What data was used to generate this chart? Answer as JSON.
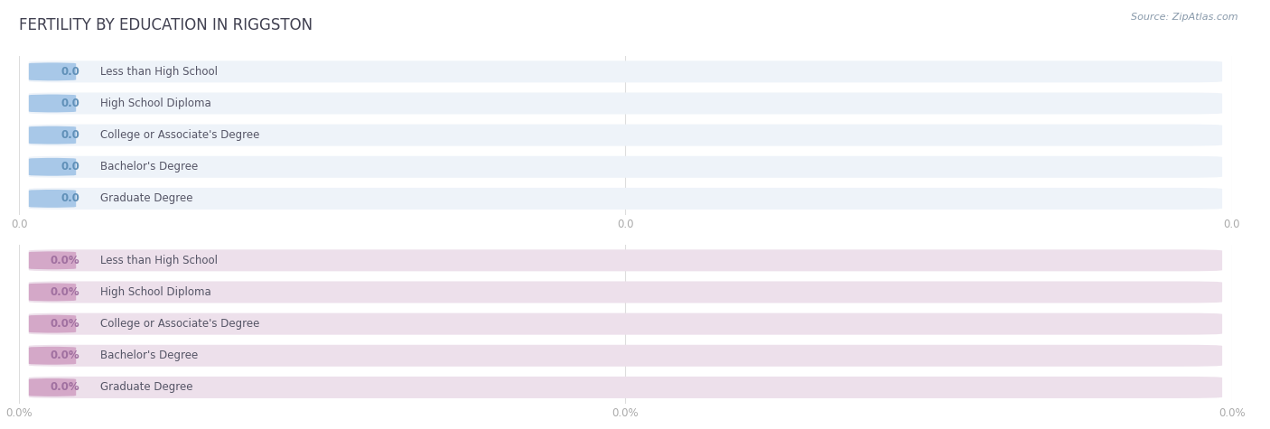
{
  "title": "FERTILITY BY EDUCATION IN RIGGSTON",
  "source": "Source: ZipAtlas.com",
  "background_color": "#ffffff",
  "plot_bg_color": "#ffffff",
  "categories": [
    "Less than High School",
    "High School Diploma",
    "College or Associate's Degree",
    "Bachelor's Degree",
    "Graduate Degree"
  ],
  "values_top": [
    0.0,
    0.0,
    0.0,
    0.0,
    0.0
  ],
  "values_bottom": [
    0.0,
    0.0,
    0.0,
    0.0,
    0.0
  ],
  "bar_color_top": "#a8c8e8",
  "bar_bg_color_top": "#eef3f9",
  "bar_color_bottom": "#d4a8c8",
  "bar_bg_color_bottom": "#ede0eb",
  "label_color": "#555566",
  "value_color_top": "#6090b8",
  "value_color_bottom": "#a070a0",
  "tick_color": "#aaaaaa",
  "grid_color": "#dddddd",
  "title_color": "#404050",
  "source_color": "#8899aa",
  "xtick_labels_top": [
    "0.0",
    "0.0",
    "0.0"
  ],
  "xtick_labels_bottom": [
    "0.0%",
    "0.0%",
    "0.0%"
  ]
}
